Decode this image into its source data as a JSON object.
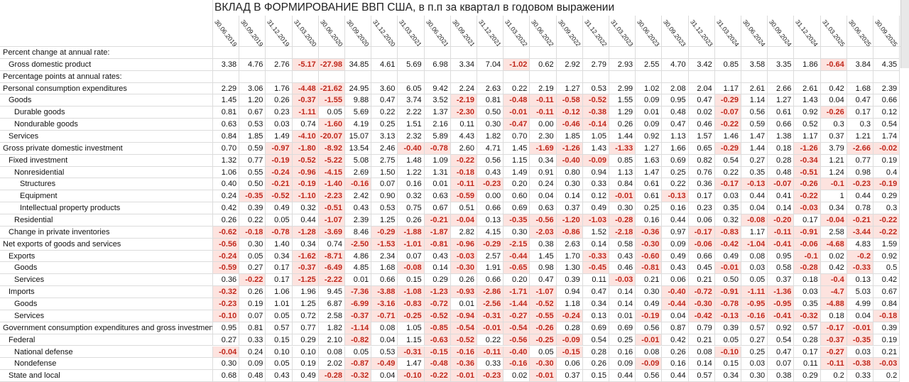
{
  "title": "ВКЛАД В ФОРМИРОВАНИЕ ВВП США, в п.п за квартал в годовом выражении",
  "columns": [
    "30.06.2019",
    "30.09.2019",
    "31.12.2019",
    "31.03.2020",
    "30.06.2020",
    "30.09.2020",
    "31.12.2020",
    "31.03.2021",
    "30.06.2021",
    "30.09.2021",
    "31.12.2021",
    "31.03.2022",
    "30.06.2022",
    "30.09.2022",
    "31.12.2022",
    "31.03.2023",
    "30.06.2023",
    "30.09.2023",
    "31.12.2023",
    "31.03.2024",
    "30.06.2024",
    "30.09.2024",
    "31.12.2024",
    "31.03.2025",
    "30.06.2025",
    "30.09.2025"
  ],
  "rows": [
    {
      "label": "Percent change at annual rate:",
      "values": []
    },
    {
      "label": "Gross domestic product",
      "values": [
        "3.38",
        "4.76",
        "2.76",
        "-5.17",
        "-27.98",
        "34.85",
        "4.61",
        "5.69",
        "6.98",
        "3.34",
        "7.04",
        "-1.02",
        "0.62",
        "2.92",
        "2.79",
        "2.93",
        "2.55",
        "4.70",
        "3.42",
        "0.85",
        "3.58",
        "3.35",
        "1.86",
        "-0.64",
        "3.84",
        "4.35"
      ]
    },
    {
      "label": "Percentage points at annual rates:",
      "values": []
    },
    {
      "label": "Personal consumption expenditures",
      "values": [
        "2.29",
        "3.06",
        "1.76",
        "-4.48",
        "-21.62",
        "24.95",
        "3.60",
        "6.05",
        "9.42",
        "2.24",
        "2.63",
        "0.22",
        "2.19",
        "1.27",
        "0.53",
        "2.99",
        "1.02",
        "2.08",
        "2.04",
        "1.17",
        "2.61",
        "2.66",
        "2.61",
        "0.42",
        "1.68",
        "2.39"
      ]
    },
    {
      "label": "Goods",
      "values": [
        "1.45",
        "1.20",
        "0.26",
        "-0.37",
        "-1.55",
        "9.88",
        "0.47",
        "3.74",
        "3.52",
        "-2.19",
        "0.81",
        "-0.48",
        "-0.11",
        "-0.58",
        "-0.52",
        "1.55",
        "0.09",
        "0.95",
        "0.47",
        "-0.29",
        "1.14",
        "1.27",
        "1.43",
        "0.04",
        "0.47",
        "0.66"
      ]
    },
    {
      "label": "Durable goods",
      "values": [
        "0.81",
        "0.67",
        "0.23",
        "-1.11",
        "0.05",
        "5.69",
        "0.22",
        "2.22",
        "1.37",
        "-2.30",
        "0.50",
        "-0.01",
        "-0.11",
        "-0.12",
        "-0.38",
        "1.29",
        "0.01",
        "0.48",
        "0.02",
        "-0.07",
        "0.56",
        "0.61",
        "0.92",
        "-0.26",
        "0.17",
        "0.12"
      ]
    },
    {
      "label": "Nondurable goods",
      "values": [
        "0.63",
        "0.53",
        "0.03",
        "0.74",
        "-1.60",
        "4.19",
        "0.25",
        "1.51",
        "2.16",
        "0.11",
        "0.30",
        "-0.47",
        "0.00",
        "-0.46",
        "-0.14",
        "0.26",
        "0.09",
        "0.47",
        "0.46",
        "-0.22",
        "0.59",
        "0.66",
        "0.52",
        "0.3",
        "0.3",
        "0.54"
      ]
    },
    {
      "label": "Services",
      "values": [
        "0.84",
        "1.85",
        "1.49",
        "-4.10",
        "-20.07",
        "15.07",
        "3.13",
        "2.32",
        "5.89",
        "4.43",
        "1.82",
        "0.70",
        "2.30",
        "1.85",
        "1.05",
        "1.44",
        "0.92",
        "1.13",
        "1.57",
        "1.46",
        "1.47",
        "1.38",
        "1.17",
        "0.37",
        "1.21",
        "1.74"
      ]
    },
    {
      "label": "Gross private domestic investment",
      "values": [
        "0.70",
        "0.59",
        "-0.97",
        "-1.80",
        "-8.92",
        "13.54",
        "2.46",
        "-0.40",
        "-0.78",
        "2.60",
        "4.71",
        "1.45",
        "-1.69",
        "-1.26",
        "1.43",
        "-1.33",
        "1.27",
        "1.66",
        "0.65",
        "-0.29",
        "1.44",
        "0.18",
        "-1.26",
        "3.79",
        "-2.66",
        "-0.02"
      ]
    },
    {
      "label": "Fixed investment",
      "values": [
        "1.32",
        "0.77",
        "-0.19",
        "-0.52",
        "-5.22",
        "5.08",
        "2.75",
        "1.48",
        "1.09",
        "-0.22",
        "0.56",
        "1.15",
        "0.34",
        "-0.40",
        "-0.09",
        "0.85",
        "1.63",
        "0.69",
        "0.82",
        "0.54",
        "0.27",
        "0.28",
        "-0.34",
        "1.21",
        "0.77",
        "0.19"
      ]
    },
    {
      "label": "Nonresidential",
      "values": [
        "1.06",
        "0.55",
        "-0.24",
        "-0.96",
        "-4.15",
        "2.69",
        "1.50",
        "1.22",
        "1.31",
        "-0.18",
        "0.43",
        "1.49",
        "0.91",
        "0.80",
        "0.94",
        "1.13",
        "1.47",
        "0.25",
        "0.76",
        "0.22",
        "0.35",
        "0.48",
        "-0.51",
        "1.24",
        "0.98",
        "0.4"
      ]
    },
    {
      "label": "Structures",
      "values": [
        "0.40",
        "0.50",
        "-0.21",
        "-0.19",
        "-1.40",
        "-0.16",
        "0.07",
        "0.16",
        "0.01",
        "-0.11",
        "-0.23",
        "0.20",
        "0.24",
        "0.30",
        "0.33",
        "0.84",
        "0.61",
        "0.22",
        "0.36",
        "-0.17",
        "-0.13",
        "-0.07",
        "-0.26",
        "-0.1",
        "-0.23",
        "-0.19"
      ]
    },
    {
      "label": "Equipment",
      "values": [
        "0.24",
        "-0.35",
        "-0.52",
        "-1.10",
        "-2.23",
        "2.42",
        "0.90",
        "0.32",
        "0.63",
        "-0.59",
        "0.00",
        "0.60",
        "0.04",
        "0.14",
        "0.12",
        "-0.01",
        "0.61",
        "-0.13",
        "0.17",
        "0.03",
        "0.44",
        "0.41",
        "-0.22",
        "1",
        "0.44",
        "0.29"
      ]
    },
    {
      "label": "Intellectual property products",
      "values": [
        "0.42",
        "0.39",
        "0.49",
        "0.32",
        "-0.51",
        "0.43",
        "0.53",
        "0.75",
        "0.67",
        "0.51",
        "0.66",
        "0.69",
        "0.63",
        "0.37",
        "0.49",
        "0.30",
        "0.25",
        "0.16",
        "0.23",
        "0.35",
        "0.04",
        "0.14",
        "-0.03",
        "0.34",
        "0.78",
        "0.3"
      ]
    },
    {
      "label": "Residential",
      "values": [
        "0.26",
        "0.22",
        "0.05",
        "0.44",
        "-1.07",
        "2.39",
        "1.25",
        "0.26",
        "-0.21",
        "-0.04",
        "0.13",
        "-0.35",
        "-0.56",
        "-1.20",
        "-1.03",
        "-0.28",
        "0.16",
        "0.44",
        "0.06",
        "0.32",
        "-0.08",
        "-0.20",
        "0.17",
        "-0.04",
        "-0.21",
        "-0.22"
      ]
    },
    {
      "label": "Change in private inventories",
      "values": [
        "-0.62",
        "-0.18",
        "-0.78",
        "-1.28",
        "-3.69",
        "8.46",
        "-0.29",
        "-1.88",
        "-1.87",
        "2.82",
        "4.15",
        "0.30",
        "-2.03",
        "-0.86",
        "1.52",
        "-2.18",
        "-0.36",
        "0.97",
        "-0.17",
        "-0.83",
        "1.17",
        "-0.11",
        "-0.91",
        "2.58",
        "-3.44",
        "-0.22"
      ]
    },
    {
      "label": "Net exports of goods and services",
      "values": [
        "-0.56",
        "0.30",
        "1.40",
        "0.34",
        "0.74",
        "-2.50",
        "-1.53",
        "-1.01",
        "-0.81",
        "-0.96",
        "-0.29",
        "-2.15",
        "0.38",
        "2.63",
        "0.14",
        "0.58",
        "-0.30",
        "0.09",
        "-0.06",
        "-0.42",
        "-1.04",
        "-0.41",
        "-0.06",
        "-4.68",
        "4.83",
        "1.59"
      ]
    },
    {
      "label": "Exports",
      "values": [
        "-0.24",
        "0.05",
        "0.34",
        "-1.62",
        "-8.71",
        "4.86",
        "2.34",
        "0.07",
        "0.43",
        "-0.03",
        "2.57",
        "-0.44",
        "1.45",
        "1.70",
        "-0.33",
        "0.43",
        "-0.60",
        "0.49",
        "0.66",
        "0.49",
        "0.08",
        "0.95",
        "-0.1",
        "0.02",
        "-0.2",
        "0.92"
      ]
    },
    {
      "label": "Goods",
      "values": [
        "-0.59",
        "0.27",
        "0.17",
        "-0.37",
        "-6.49",
        "4.85",
        "1.68",
        "-0.08",
        "0.14",
        "-0.30",
        "1.91",
        "-0.65",
        "0.98",
        "1.30",
        "-0.45",
        "0.46",
        "-0.81",
        "0.43",
        "0.45",
        "-0.01",
        "0.03",
        "0.58",
        "-0.28",
        "0.42",
        "-0.33",
        "0.5"
      ]
    },
    {
      "label": "Services",
      "values": [
        "0.36",
        "-0.22",
        "0.17",
        "-1.25",
        "-2.22",
        "0.01",
        "0.66",
        "0.15",
        "0.29",
        "0.26",
        "0.66",
        "0.20",
        "0.47",
        "0.39",
        "0.11",
        "-0.03",
        "0.21",
        "0.06",
        "0.21",
        "0.50",
        "0.05",
        "0.37",
        "0.18",
        "-0.4",
        "0.13",
        "0.42"
      ]
    },
    {
      "label": "Imports",
      "values": [
        "-0.32",
        "0.26",
        "1.06",
        "1.96",
        "9.45",
        "-7.36",
        "-3.88",
        "-1.08",
        "-1.23",
        "-0.93",
        "-2.86",
        "-1.71",
        "-1.07",
        "0.94",
        "0.47",
        "0.14",
        "0.30",
        "-0.40",
        "-0.72",
        "-0.91",
        "-1.11",
        "-1.36",
        "0.03",
        "-4.7",
        "5.03",
        "0.67"
      ]
    },
    {
      "label": "Goods",
      "values": [
        "-0.23",
        "0.19",
        "1.01",
        "1.25",
        "6.87",
        "-6.99",
        "-3.16",
        "-0.83",
        "-0.72",
        "0.01",
        "-2.56",
        "-1.44",
        "-0.52",
        "1.18",
        "0.34",
        "0.14",
        "0.49",
        "-0.44",
        "-0.30",
        "-0.78",
        "-0.95",
        "-0.95",
        "0.35",
        "-4.88",
        "4.99",
        "0.84"
      ]
    },
    {
      "label": "Services",
      "values": [
        "-0.10",
        "0.07",
        "0.05",
        "0.72",
        "2.58",
        "-0.37",
        "-0.71",
        "-0.25",
        "-0.52",
        "-0.94",
        "-0.31",
        "-0.27",
        "-0.55",
        "-0.24",
        "0.13",
        "0.01",
        "-0.19",
        "0.04",
        "-0.42",
        "-0.13",
        "-0.16",
        "-0.41",
        "-0.32",
        "0.18",
        "0.04",
        "-0.18"
      ]
    },
    {
      "label": "Government consumption expenditures and gross investment",
      "values": [
        "0.95",
        "0.81",
        "0.57",
        "0.77",
        "1.82",
        "-1.14",
        "0.08",
        "1.05",
        "-0.85",
        "-0.54",
        "-0.01",
        "-0.54",
        "-0.26",
        "0.28",
        "0.69",
        "0.69",
        "0.56",
        "0.87",
        "0.79",
        "0.39",
        "0.57",
        "0.92",
        "0.57",
        "-0.17",
        "-0.01",
        "0.39"
      ]
    },
    {
      "label": "Federal",
      "values": [
        "0.27",
        "0.33",
        "0.15",
        "0.29",
        "2.10",
        "-0.82",
        "0.04",
        "1.15",
        "-0.63",
        "-0.52",
        "0.22",
        "-0.56",
        "-0.25",
        "-0.09",
        "0.54",
        "0.25",
        "-0.01",
        "0.42",
        "0.21",
        "0.05",
        "0.27",
        "0.54",
        "0.28",
        "-0.37",
        "-0.35",
        "0.19"
      ]
    },
    {
      "label": "National defense",
      "values": [
        "-0.04",
        "0.24",
        "0.10",
        "0.10",
        "0.08",
        "0.05",
        "0.53",
        "-0.31",
        "-0.15",
        "-0.16",
        "-0.11",
        "-0.40",
        "0.05",
        "-0.15",
        "0.28",
        "0.16",
        "0.08",
        "0.26",
        "0.08",
        "-0.10",
        "0.25",
        "0.47",
        "0.17",
        "-0.27",
        "0.03",
        "0.21"
      ]
    },
    {
      "label": "Nondefense",
      "values": [
        "0.30",
        "0.09",
        "0.05",
        "0.19",
        "2.02",
        "-0.87",
        "-0.49",
        "1.47",
        "-0.48",
        "-0.36",
        "0.33",
        "-0.16",
        "-0.30",
        "0.06",
        "0.26",
        "0.09",
        "-0.09",
        "0.16",
        "0.14",
        "0.15",
        "0.03",
        "0.07",
        "0.11",
        "-0.11",
        "-0.38",
        "-0.03"
      ]
    },
    {
      "label": "State and local",
      "values": [
        "0.68",
        "0.48",
        "0.43",
        "0.49",
        "-0.28",
        "-0.32",
        "0.04",
        "-0.10",
        "-0.22",
        "-0.01",
        "-0.23",
        "0.02",
        "-0.01",
        "0.37",
        "0.15",
        "0.44",
        "0.56",
        "0.44",
        "0.57",
        "0.34",
        "0.30",
        "0.38",
        "0.29",
        "0.2",
        "0.33",
        "0.2"
      ]
    }
  ]
}
